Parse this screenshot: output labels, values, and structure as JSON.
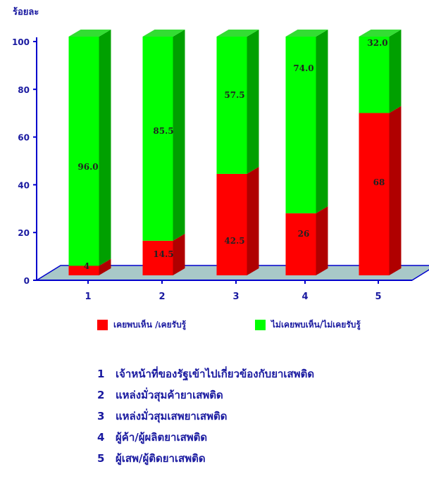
{
  "unit_label": "ร้อยละ",
  "chart_data": {
    "type": "bar",
    "stacked": true,
    "categories": [
      "1",
      "2",
      "3",
      "4",
      "5"
    ],
    "ylim": [
      0,
      100
    ],
    "yticks": [
      "0",
      "20",
      "40",
      "60",
      "80",
      "100"
    ],
    "series": [
      {
        "name": "เคยพบเห็น /เคยรับรู้",
        "color": "#ff0000",
        "values": [
          4,
          14.5,
          42.5,
          26,
          68
        ],
        "labels": [
          "4",
          "14.5",
          "42.5",
          "26",
          "68"
        ]
      },
      {
        "name": "ไม่เคยพบเห็น/ไม่เคยรับรู้",
        "color": "#00ff00",
        "values": [
          96.0,
          85.5,
          57.5,
          74.0,
          32.0
        ],
        "labels": [
          "96.0",
          "85.5",
          "57.5",
          "74.0",
          "32.0"
        ]
      }
    ],
    "legend_position": "bottom"
  },
  "notes": [
    {
      "num": "1",
      "text": "เจ้าหน้าที่ของรัฐเข้าไปเกี่ยวข้องกับยาเสพติด"
    },
    {
      "num": "2",
      "text": "แหล่งมั่วสุมค้ายาเสพติด"
    },
    {
      "num": "3",
      "text": "แหล่งมั่วสุมเสพยาเสพติด"
    },
    {
      "num": "4",
      "text": "ผู้ค้า/ผู้ผลิตยาเสพติด"
    },
    {
      "num": "5",
      "text": "ผู้เสพ/ผู้ติดยาเสพติด"
    }
  ],
  "colors": {
    "axis": "#0000cc",
    "text": "#1a1aa0",
    "floor": "#a8c8c8"
  }
}
